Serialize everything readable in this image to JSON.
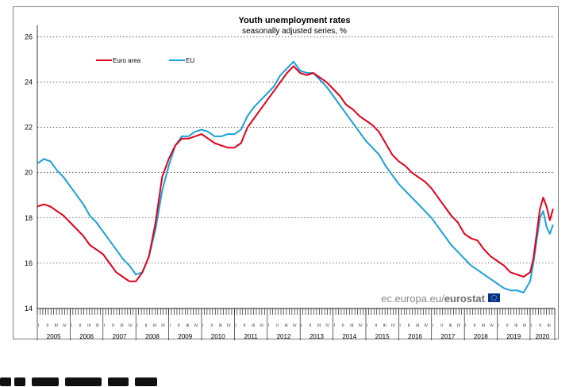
{
  "chart_data": {
    "type": "line",
    "title": "Youth unemployment rates",
    "subtitle": "seasonally adjusted series, %",
    "ylim": [
      14,
      26.5
    ],
    "yticks": [
      14,
      16,
      18,
      20,
      22,
      24,
      26
    ],
    "x_start": 2005,
    "x_end": 2020.75,
    "x_years": [
      "2005",
      "2006",
      "2007",
      "2008",
      "2009",
      "2010",
      "2011",
      "2012",
      "2013",
      "2014",
      "2015",
      "2016",
      "2017",
      "2018",
      "2019",
      "2020"
    ],
    "quarter_labels": [
      "I",
      "II",
      "III",
      "IV"
    ],
    "legend_position": "top-left",
    "grid": "horizontal",
    "series": [
      {
        "name": "Euro area",
        "color": "#e2001a",
        "points": [
          [
            2005.0,
            18.5
          ],
          [
            2005.2,
            18.6
          ],
          [
            2005.4,
            18.5
          ],
          [
            2005.6,
            18.3
          ],
          [
            2005.8,
            18.1
          ],
          [
            2006.0,
            17.8
          ],
          [
            2006.2,
            17.5
          ],
          [
            2006.4,
            17.2
          ],
          [
            2006.6,
            16.8
          ],
          [
            2006.8,
            16.6
          ],
          [
            2007.0,
            16.4
          ],
          [
            2007.2,
            16.0
          ],
          [
            2007.4,
            15.6
          ],
          [
            2007.6,
            15.4
          ],
          [
            2007.8,
            15.2
          ],
          [
            2008.0,
            15.2
          ],
          [
            2008.2,
            15.6
          ],
          [
            2008.4,
            16.3
          ],
          [
            2008.6,
            17.8
          ],
          [
            2008.8,
            19.8
          ],
          [
            2009.0,
            20.6
          ],
          [
            2009.2,
            21.2
          ],
          [
            2009.4,
            21.5
          ],
          [
            2009.6,
            21.5
          ],
          [
            2009.8,
            21.6
          ],
          [
            2010.0,
            21.7
          ],
          [
            2010.2,
            21.5
          ],
          [
            2010.4,
            21.3
          ],
          [
            2010.6,
            21.2
          ],
          [
            2010.8,
            21.1
          ],
          [
            2011.0,
            21.1
          ],
          [
            2011.2,
            21.3
          ],
          [
            2011.4,
            22.0
          ],
          [
            2011.6,
            22.4
          ],
          [
            2011.8,
            22.8
          ],
          [
            2012.0,
            23.2
          ],
          [
            2012.2,
            23.6
          ],
          [
            2012.4,
            24.0
          ],
          [
            2012.6,
            24.4
          ],
          [
            2012.8,
            24.7
          ],
          [
            2013.0,
            24.4
          ],
          [
            2013.2,
            24.3
          ],
          [
            2013.4,
            24.4
          ],
          [
            2013.6,
            24.2
          ],
          [
            2013.8,
            24.0
          ],
          [
            2014.0,
            23.7
          ],
          [
            2014.2,
            23.4
          ],
          [
            2014.4,
            23.0
          ],
          [
            2014.6,
            22.8
          ],
          [
            2014.8,
            22.5
          ],
          [
            2015.0,
            22.3
          ],
          [
            2015.2,
            22.1
          ],
          [
            2015.4,
            21.8
          ],
          [
            2015.6,
            21.3
          ],
          [
            2015.8,
            20.8
          ],
          [
            2016.0,
            20.5
          ],
          [
            2016.2,
            20.3
          ],
          [
            2016.4,
            20.0
          ],
          [
            2016.6,
            19.8
          ],
          [
            2016.8,
            19.6
          ],
          [
            2017.0,
            19.3
          ],
          [
            2017.2,
            18.9
          ],
          [
            2017.4,
            18.5
          ],
          [
            2017.6,
            18.1
          ],
          [
            2017.8,
            17.8
          ],
          [
            2018.0,
            17.3
          ],
          [
            2018.2,
            17.1
          ],
          [
            2018.4,
            17.0
          ],
          [
            2018.6,
            16.6
          ],
          [
            2018.8,
            16.3
          ],
          [
            2019.0,
            16.1
          ],
          [
            2019.2,
            15.9
          ],
          [
            2019.4,
            15.6
          ],
          [
            2019.6,
            15.5
          ],
          [
            2019.8,
            15.4
          ],
          [
            2020.0,
            15.6
          ],
          [
            2020.1,
            16.2
          ],
          [
            2020.2,
            17.3
          ],
          [
            2020.3,
            18.4
          ],
          [
            2020.4,
            18.9
          ],
          [
            2020.5,
            18.5
          ],
          [
            2020.6,
            17.9
          ],
          [
            2020.7,
            18.4
          ]
        ]
      },
      {
        "name": "EU",
        "color": "#1aa0dc",
        "points": [
          [
            2005.0,
            20.4
          ],
          [
            2005.2,
            20.6
          ],
          [
            2005.4,
            20.5
          ],
          [
            2005.6,
            20.1
          ],
          [
            2005.8,
            19.8
          ],
          [
            2006.0,
            19.4
          ],
          [
            2006.2,
            19.0
          ],
          [
            2006.4,
            18.6
          ],
          [
            2006.6,
            18.1
          ],
          [
            2006.8,
            17.8
          ],
          [
            2007.0,
            17.4
          ],
          [
            2007.2,
            17.0
          ],
          [
            2007.4,
            16.6
          ],
          [
            2007.6,
            16.2
          ],
          [
            2007.8,
            15.9
          ],
          [
            2008.0,
            15.5
          ],
          [
            2008.2,
            15.6
          ],
          [
            2008.4,
            16.3
          ],
          [
            2008.6,
            17.5
          ],
          [
            2008.8,
            19.2
          ],
          [
            2009.0,
            20.3
          ],
          [
            2009.2,
            21.2
          ],
          [
            2009.4,
            21.6
          ],
          [
            2009.6,
            21.6
          ],
          [
            2009.8,
            21.8
          ],
          [
            2010.0,
            21.9
          ],
          [
            2010.2,
            21.8
          ],
          [
            2010.4,
            21.6
          ],
          [
            2010.6,
            21.6
          ],
          [
            2010.8,
            21.7
          ],
          [
            2011.0,
            21.7
          ],
          [
            2011.2,
            21.9
          ],
          [
            2011.4,
            22.5
          ],
          [
            2011.6,
            22.9
          ],
          [
            2011.8,
            23.2
          ],
          [
            2012.0,
            23.5
          ],
          [
            2012.2,
            23.8
          ],
          [
            2012.4,
            24.3
          ],
          [
            2012.6,
            24.6
          ],
          [
            2012.8,
            24.9
          ],
          [
            2013.0,
            24.5
          ],
          [
            2013.2,
            24.4
          ],
          [
            2013.4,
            24.4
          ],
          [
            2013.6,
            24.1
          ],
          [
            2013.8,
            23.8
          ],
          [
            2014.0,
            23.4
          ],
          [
            2014.2,
            23.0
          ],
          [
            2014.4,
            22.6
          ],
          [
            2014.6,
            22.2
          ],
          [
            2014.8,
            21.8
          ],
          [
            2015.0,
            21.4
          ],
          [
            2015.2,
            21.1
          ],
          [
            2015.4,
            20.8
          ],
          [
            2015.6,
            20.3
          ],
          [
            2015.8,
            19.9
          ],
          [
            2016.0,
            19.5
          ],
          [
            2016.2,
            19.2
          ],
          [
            2016.4,
            18.9
          ],
          [
            2016.6,
            18.6
          ],
          [
            2016.8,
            18.3
          ],
          [
            2017.0,
            18.0
          ],
          [
            2017.2,
            17.6
          ],
          [
            2017.4,
            17.2
          ],
          [
            2017.6,
            16.8
          ],
          [
            2017.8,
            16.5
          ],
          [
            2018.0,
            16.2
          ],
          [
            2018.2,
            15.9
          ],
          [
            2018.4,
            15.7
          ],
          [
            2018.6,
            15.5
          ],
          [
            2018.8,
            15.3
          ],
          [
            2019.0,
            15.1
          ],
          [
            2019.2,
            14.9
          ],
          [
            2019.4,
            14.8
          ],
          [
            2019.6,
            14.8
          ],
          [
            2019.8,
            14.7
          ],
          [
            2020.0,
            15.2
          ],
          [
            2020.1,
            16.0
          ],
          [
            2020.2,
            17.0
          ],
          [
            2020.3,
            18.0
          ],
          [
            2020.4,
            18.3
          ],
          [
            2020.5,
            17.6
          ],
          [
            2020.6,
            17.3
          ],
          [
            2020.7,
            17.7
          ]
        ]
      }
    ]
  },
  "watermark": {
    "domain_part": "ec.europa.eu/",
    "brand_part": "eurostat"
  }
}
